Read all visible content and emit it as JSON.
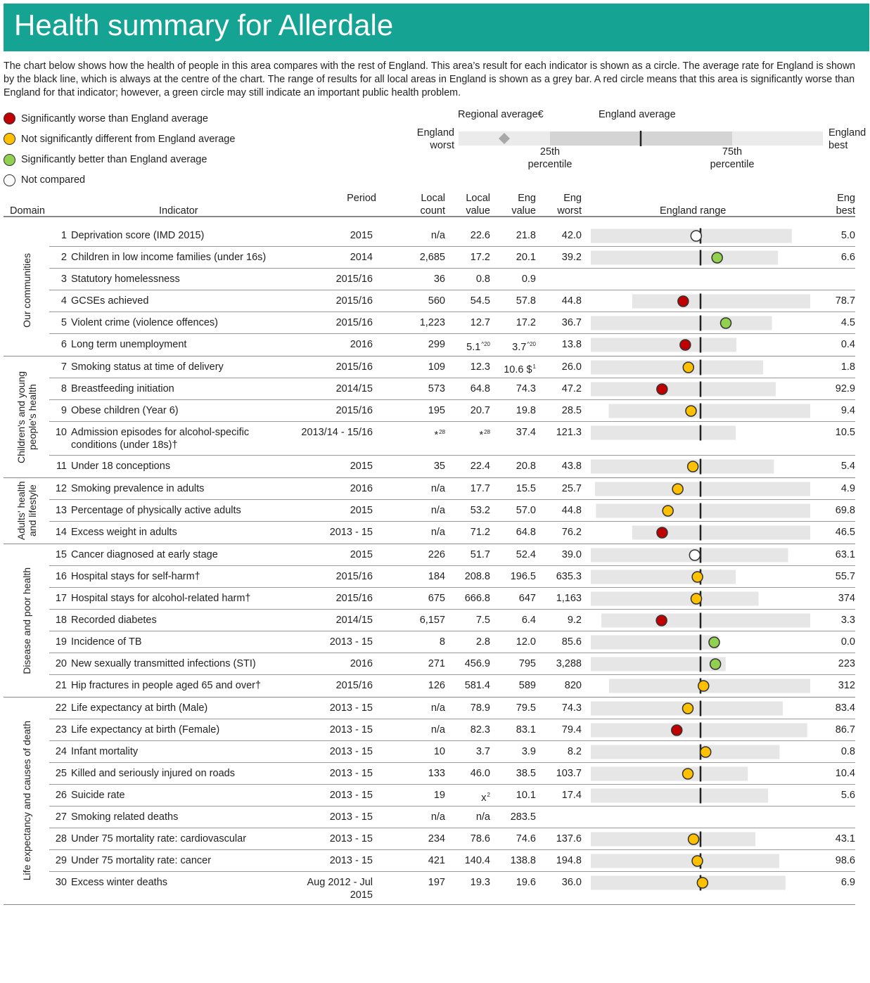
{
  "header": {
    "title": "Health summary for Allerdale"
  },
  "intro": "The chart below shows how the health of people in this area compares with the rest of England. This area’s result for each indicator is shown as a circle. The average rate for England is shown by the black line, which is always at the centre of the chart. The range of results for all local areas in England is shown as a grey bar. A red circle means that this area is significantly worse than England for that indicator; however, a green circle may still indicate an important public health problem.",
  "legend": [
    {
      "label": "Significantly worse than England average",
      "color": "#c00000"
    },
    {
      "label": "Not significantly different from England average",
      "color": "#ffc000"
    },
    {
      "label": "Significantly better than England average",
      "color": "#92d050"
    },
    {
      "label": "Not compared",
      "color": "#ffffff"
    }
  ],
  "key": {
    "regional": "Regional average€",
    "england": "England average",
    "worst": "England worst",
    "best": "England best",
    "p25": "25th percentile",
    "p75": "75th percentile"
  },
  "columns": {
    "domain": "Domain",
    "indicator": "Indicator",
    "period": "Period",
    "local_count": "Local count",
    "local_value": "Local value",
    "eng_value": "Eng value",
    "eng_worst": "Eng worst",
    "range": "England range",
    "eng_best": "Eng best"
  },
  "domains": [
    {
      "name": "Our communities",
      "rows": [
        {
          "n": 1,
          "indicator": "Deprivation score (IMD 2015)",
          "period": "2015",
          "count": "n/a",
          "local": "22.6",
          "eng": "21.8",
          "worst": "42.0",
          "best": "5.0",
          "color": "#ffffff"
        },
        {
          "n": 2,
          "indicator": "Children in low income families (under 16s)",
          "period": "2014",
          "count": "2,685",
          "local": "17.2",
          "eng": "20.1",
          "worst": "39.2",
          "best": "6.6",
          "color": "#92d050"
        },
        {
          "n": 3,
          "indicator": "Statutory homelessness",
          "period": "2015/16",
          "count": "36",
          "local": "0.8",
          "eng": "0.9"
        },
        {
          "n": 4,
          "indicator": "GCSEs achieved",
          "period": "2015/16",
          "count": "560",
          "local": "54.5",
          "eng": "57.8",
          "worst": "44.8",
          "best": "78.7",
          "color": "#c00000"
        },
        {
          "n": 5,
          "indicator": "Violent crime (violence offences)",
          "period": "2015/16",
          "count": "1,223",
          "local": "12.7",
          "eng": "17.2",
          "worst": "36.7",
          "best": "4.5",
          "color": "#92d050"
        },
        {
          "n": 6,
          "indicator": "Long term unemployment",
          "period": "2016",
          "count": "299",
          "local": "5.1",
          "local_sup": "^20",
          "eng": "3.7",
          "eng_sup": "^20",
          "worst": "13.8",
          "best": "0.4",
          "color": "#c00000"
        }
      ]
    },
    {
      "name": "Children's and young people's health",
      "rows": [
        {
          "n": 7,
          "indicator": "Smoking status at time of delivery",
          "period": "2015/16",
          "count": "109",
          "local": "12.3",
          "eng": "10.6 $",
          "eng_sup": "1",
          "worst": "26.0",
          "best": "1.8",
          "color": "#ffc000"
        },
        {
          "n": 8,
          "indicator": "Breastfeeding initiation",
          "period": "2014/15",
          "count": "573",
          "local": "64.8",
          "eng": "74.3",
          "worst": "47.2",
          "best": "92.9",
          "color": "#c00000"
        },
        {
          "n": 9,
          "indicator": "Obese children (Year 6)",
          "period": "2015/16",
          "count": "195",
          "local": "20.7",
          "eng": "19.8",
          "worst": "28.5",
          "best": "9.4",
          "color": "#ffc000"
        },
        {
          "n": 10,
          "indicator": "Admission episodes for alcohol-specific conditions (under 18s)†",
          "period": "2013/14 - 15/16",
          "count": "*",
          "count_sup": "28",
          "local": "*",
          "local_sup": "28",
          "eng": "37.4",
          "worst": "121.3",
          "best": "10.5"
        },
        {
          "n": 11,
          "indicator": "Under 18 conceptions",
          "period": "2015",
          "count": "35",
          "local": "22.4",
          "eng": "20.8",
          "worst": "43.8",
          "best": "5.4",
          "color": "#ffc000"
        }
      ]
    },
    {
      "name": "Adults' health and lifestyle",
      "rows": [
        {
          "n": 12,
          "indicator": "Smoking prevalence in adults",
          "period": "2016",
          "count": "n/a",
          "local": "17.7",
          "eng": "15.5",
          "worst": "25.7",
          "best": "4.9",
          "color": "#ffc000"
        },
        {
          "n": 13,
          "indicator": "Percentage of physically active adults",
          "period": "2015",
          "count": "n/a",
          "local": "53.2",
          "eng": "57.0",
          "worst": "44.8",
          "best": "69.8",
          "color": "#ffc000"
        },
        {
          "n": 14,
          "indicator": "Excess weight in adults",
          "period": "2013 - 15",
          "count": "n/a",
          "local": "71.2",
          "eng": "64.8",
          "worst": "76.2",
          "best": "46.5",
          "color": "#c00000"
        }
      ]
    },
    {
      "name": "Disease and poor health",
      "rows": [
        {
          "n": 15,
          "indicator": "Cancer diagnosed at early stage",
          "period": "2015",
          "count": "226",
          "local": "51.7",
          "eng": "52.4",
          "worst": "39.0",
          "best": "63.1",
          "color": "#ffffff"
        },
        {
          "n": 16,
          "indicator": "Hospital stays for self-harm†",
          "period": "2015/16",
          "count": "184",
          "local": "208.8",
          "eng": "196.5",
          "worst": "635.3",
          "best": "55.7",
          "color": "#ffc000"
        },
        {
          "n": 17,
          "indicator": "Hospital stays for alcohol-related harm†",
          "period": "2015/16",
          "count": "675",
          "local": "666.8",
          "eng": "647",
          "worst": "1,163",
          "best": "374",
          "color": "#ffc000"
        },
        {
          "n": 18,
          "indicator": "Recorded diabetes",
          "period": "2014/15",
          "count": "6,157",
          "local": "7.5",
          "eng": "6.4",
          "worst": "9.2",
          "best": "3.3",
          "color": "#c00000"
        },
        {
          "n": 19,
          "indicator": "Incidence of TB",
          "period": "2013 - 15",
          "count": "8",
          "local": "2.8",
          "eng": "12.0",
          "worst": "85.6",
          "best": "0.0",
          "color": "#92d050"
        },
        {
          "n": 20,
          "indicator": "New sexually transmitted infections (STI)",
          "period": "2016",
          "count": "271",
          "local": "456.9",
          "eng": "795",
          "worst": "3,288",
          "best": "223",
          "color": "#92d050"
        },
        {
          "n": 21,
          "indicator": "Hip fractures in people aged 65 and over†",
          "period": "2015/16",
          "count": "126",
          "local": "581.4",
          "eng": "589",
          "worst": "820",
          "best": "312",
          "color": "#ffc000"
        }
      ]
    },
    {
      "name": "Life expectancy and causes of death",
      "rows": [
        {
          "n": 22,
          "indicator": "Life expectancy at birth (Male)",
          "period": "2013 - 15",
          "count": "n/a",
          "local": "78.9",
          "eng": "79.5",
          "worst": "74.3",
          "best": "83.4",
          "color": "#ffc000"
        },
        {
          "n": 23,
          "indicator": "Life expectancy at birth (Female)",
          "period": "2013 - 15",
          "count": "n/a",
          "local": "82.3",
          "eng": "83.1",
          "worst": "79.4",
          "best": "86.7",
          "color": "#c00000"
        },
        {
          "n": 24,
          "indicator": "Infant mortality",
          "period": "2013 - 15",
          "count": "10",
          "local": "3.7",
          "eng": "3.9",
          "worst": "8.2",
          "best": "0.8",
          "color": "#ffc000"
        },
        {
          "n": 25,
          "indicator": "Killed and seriously injured on roads",
          "period": "2013 - 15",
          "count": "133",
          "local": "46.0",
          "eng": "38.5",
          "worst": "103.7",
          "best": "10.4",
          "color": "#ffc000"
        },
        {
          "n": 26,
          "indicator": "Suicide rate",
          "period": "2013 - 15",
          "count": "19",
          "local": "x",
          "local_sup": "2",
          "eng": "10.1",
          "worst": "17.4",
          "best": "5.6"
        },
        {
          "n": 27,
          "indicator": "Smoking related deaths",
          "period": "2013 - 15",
          "count": "n/a",
          "local": "n/a",
          "eng": "283.5"
        },
        {
          "n": 28,
          "indicator": "Under 75 mortality rate: cardiovascular",
          "period": "2013 - 15",
          "count": "234",
          "local": "78.6",
          "eng": "74.6",
          "worst": "137.6",
          "best": "43.1",
          "color": "#ffc000"
        },
        {
          "n": 29,
          "indicator": "Under 75 mortality rate: cancer",
          "period": "2013 - 15",
          "count": "421",
          "local": "140.4",
          "eng": "138.8",
          "worst": "194.8",
          "best": "98.6",
          "color": "#ffc000"
        },
        {
          "n": 30,
          "indicator": "Excess winter deaths",
          "period": "Aug 2012 - Jul 2015",
          "count": "197",
          "local": "19.3",
          "eng": "19.6",
          "worst": "36.0",
          "best": "6.9",
          "color": "#ffc000"
        }
      ]
    }
  ]
}
